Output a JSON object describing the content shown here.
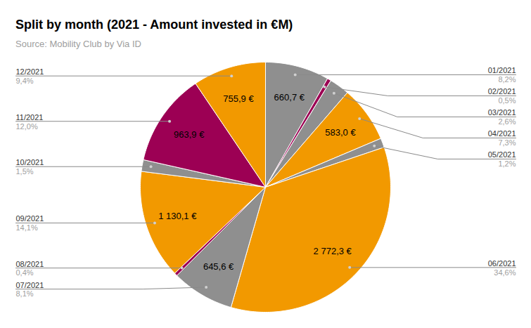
{
  "chart_data": {
    "type": "pie",
    "title": "Split by month (2021 - Amount invested in €M)",
    "subtitle": "Source: Mobility Club by Via ID",
    "categories": [
      "01/2021",
      "02/2021",
      "03/2021",
      "04/2021",
      "05/2021",
      "06/2021",
      "07/2021",
      "08/2021",
      "09/2021",
      "10/2021",
      "11/2021",
      "12/2021"
    ],
    "values": [
      660.7,
      40,
      208,
      583.0,
      96,
      2772.3,
      645.6,
      32,
      1130.1,
      120,
      963.9,
      755.9
    ],
    "value_labels": [
      "660,7 €",
      null,
      null,
      "583,0 €",
      null,
      "2 772,3 €",
      "645,6 €",
      null,
      "1 130,1 €",
      null,
      "963,9 €",
      "755,9 €"
    ],
    "percentages": [
      8.2,
      0.5,
      2.6,
      7.3,
      1.2,
      34.6,
      8.1,
      0.4,
      14.1,
      1.5,
      12.0,
      9.4
    ],
    "percentage_labels": [
      "8,2%",
      "0,5%",
      "2,6%",
      "7,3%",
      "1,2%",
      "34,6%",
      "8,1%",
      "0,4%",
      "14,1%",
      "1,5%",
      "12,0%",
      "9,4%"
    ],
    "colors": [
      "#8f8f8f",
      "#9c0054",
      "#8f8f8f",
      "#f29900",
      "#8f8f8f",
      "#f29900",
      "#8f8f8f",
      "#9c0054",
      "#f29900",
      "#8f8f8f",
      "#9c0054",
      "#f29900"
    ],
    "data_labels": true
  }
}
